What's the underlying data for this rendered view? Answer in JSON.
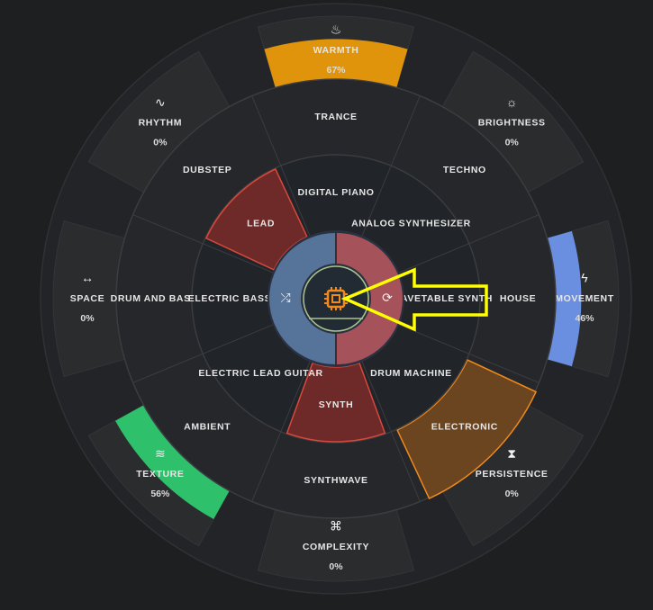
{
  "parameters": [
    {
      "label": "WARMTH",
      "value": "67%",
      "level": 0.67,
      "icon": "flame-icon",
      "color": "#e0940c"
    },
    {
      "label": "BRIGHTNESS",
      "value": "0%",
      "level": 0,
      "icon": "sun-icon",
      "color": "#e0940c"
    },
    {
      "label": "MOVEMENT",
      "value": "46%",
      "level": 0.46,
      "icon": "lightning-icon",
      "color": "#6b8fe0"
    },
    {
      "label": "PERSISTENCE",
      "value": "0%",
      "level": 0,
      "icon": "hourglass-icon",
      "color": "#e0940c"
    },
    {
      "label": "COMPLEXITY",
      "value": "0%",
      "level": 0,
      "icon": "hierarchy-icon",
      "color": "#e0940c"
    },
    {
      "label": "TEXTURE",
      "value": "56%",
      "level": 0.56,
      "icon": "waves-icon",
      "color": "#2ec06a"
    },
    {
      "label": "SPACE",
      "value": "0%",
      "level": 0,
      "icon": "arrows-horizontal-icon",
      "color": "#e0940c"
    },
    {
      "label": "RHYTHM",
      "value": "0%",
      "level": 0,
      "icon": "pulse-icon",
      "color": "#e0940c"
    }
  ],
  "genres": [
    {
      "label": "TRANCE",
      "selected": false
    },
    {
      "label": "TECHNO",
      "selected": false
    },
    {
      "label": "HOUSE",
      "selected": false
    },
    {
      "label": "ELECTRONIC",
      "selected": true
    },
    {
      "label": "SYNTHWAVE",
      "selected": false
    },
    {
      "label": "AMBIENT",
      "selected": false
    },
    {
      "label": "DRUM AND BASS",
      "selected": false
    },
    {
      "label": "DUBSTEP",
      "selected": false
    }
  ],
  "instruments": [
    {
      "label": "DIGITAL PIANO",
      "selected": false
    },
    {
      "label": "ANALOG SYNTHESIZER",
      "selected": false
    },
    {
      "label": "WAVETABLE SYNTH",
      "selected": false
    },
    {
      "label": "DRUM MACHINE",
      "selected": false
    },
    {
      "label": "SYNTH",
      "selected": true
    },
    {
      "label": "ELECTRIC LEAD GUITAR",
      "selected": false
    },
    {
      "label": "ELECTRIC BASS",
      "selected": false
    },
    {
      "label": "LEAD",
      "selected": true
    }
  ],
  "center": {
    "left_icon": "shuffle-icon",
    "right_icon": "refresh-icon",
    "core_icon": "cpu-icon",
    "left_color": "#56739a",
    "right_color": "#a5525a",
    "core_icon_color": "#f08a1c"
  },
  "colors": {
    "genre_selected": "#6b4420",
    "genre_selected_stroke": "#f08a1c",
    "instrument_selected": "#6e2a28",
    "instrument_selected_stroke": "#d9483c",
    "annotation_arrow": "#ffff00"
  }
}
